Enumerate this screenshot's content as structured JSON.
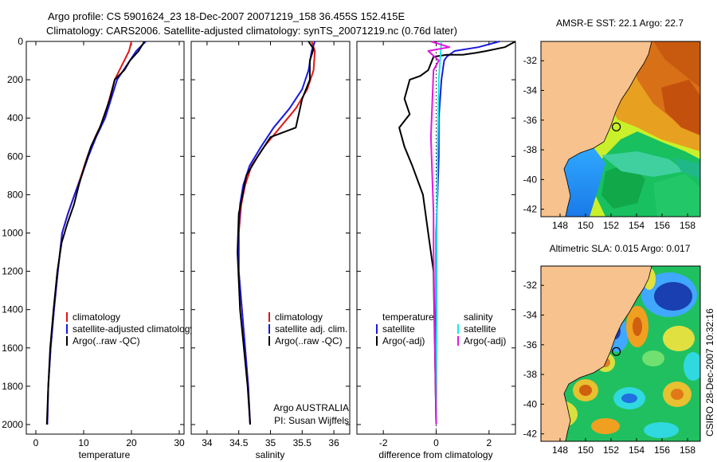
{
  "header": {
    "line1": "Argo profile: CS 5901624_23 18-Dec-2007 20071219_158 36.455S 152.415E",
    "line2": "Climatology: CARS2006. Satellite-adjusted climatology: synTS_20071219.nc (0.76d later)"
  },
  "side_label": "CSIRO 28-Dec-2007 10:32:16",
  "colors": {
    "climatology": "#e01818",
    "satellite": "#1a1adc",
    "argo": "#000000",
    "satellite_salinity": "#18e8e8",
    "argo_salinity": "#e018e0",
    "land": "#f7c28e"
  },
  "chart_data": [
    {
      "type": "line",
      "xlabel": "temperature",
      "ylabel": "",
      "xlim": [
        -2,
        31
      ],
      "ylim": [
        2050,
        0
      ],
      "xticks": [
        0,
        10,
        20,
        30
      ],
      "yticks": [
        0,
        200,
        400,
        600,
        800,
        1000,
        1200,
        1400,
        1600,
        1800,
        2000
      ],
      "legend": [
        "climatology",
        "satellite-adjusted climatology",
        "Argo(..raw -QC)"
      ],
      "series": [
        {
          "name": "climatology",
          "x": [
            20,
            19.5,
            16.5,
            14.3,
            12.4,
            10.8,
            9.5,
            8.1,
            6.7,
            5.5,
            4.6,
            3.8,
            3.1,
            2.6,
            2.4
          ],
          "y": [
            0,
            50,
            200,
            400,
            500,
            600,
            700,
            800,
            900,
            1000,
            1200,
            1400,
            1600,
            1800,
            2000
          ]
        },
        {
          "name": "satellite-adjusted climatology",
          "x": [
            23,
            21,
            17,
            14.5,
            12.6,
            11,
            9.6,
            8.1,
            6.7,
            5.5,
            4.6,
            3.8,
            3.1,
            2.6,
            2.4
          ],
          "y": [
            0,
            50,
            200,
            400,
            500,
            600,
            700,
            800,
            900,
            1000,
            1200,
            1400,
            1600,
            1800,
            2000
          ]
        },
        {
          "name": "Argo(..raw -QC)",
          "x": [
            22.7,
            21.5,
            19.7,
            18.5,
            16.5,
            15.5,
            13.4,
            11.5,
            10.2,
            9,
            8,
            6.6,
            5.4,
            4.5,
            3.7,
            3,
            2.6,
            2.3
          ],
          "y": [
            0,
            50,
            100,
            150,
            200,
            300,
            450,
            550,
            650,
            750,
            850,
            950,
            1050,
            1200,
            1400,
            1600,
            1800,
            2000
          ]
        }
      ]
    },
    {
      "type": "line",
      "xlabel": "salinity",
      "ylabel": "",
      "xlim": [
        33.75,
        36.25
      ],
      "ylim": [
        2050,
        0
      ],
      "xticks": [
        34,
        34.5,
        35,
        35.5,
        36
      ],
      "legend": [
        "climatology",
        "satellite adj. clim.",
        "Argo(..raw -QC)"
      ],
      "annotation": [
        "Argo AUSTRALIA",
        "PI: Susan Wijffels"
      ],
      "series": [
        {
          "name": "climatology",
          "x": [
            35.65,
            35.7,
            35.68,
            35.58,
            35.4,
            35.15,
            34.9,
            34.7,
            34.6,
            34.54,
            34.5,
            34.5,
            34.55,
            34.6,
            34.65,
            34.68
          ],
          "y": [
            0,
            50,
            150,
            250,
            350,
            450,
            550,
            650,
            750,
            850,
            1000,
            1200,
            1400,
            1600,
            1800,
            2000
          ]
        },
        {
          "name": "satellite adj. clim.",
          "x": [
            35.7,
            35.65,
            35.6,
            35.5,
            35.3,
            35.05,
            34.85,
            34.67,
            34.57,
            34.52,
            34.5,
            34.5,
            34.55,
            34.6,
            34.65,
            34.68
          ],
          "y": [
            0,
            50,
            150,
            250,
            350,
            450,
            550,
            650,
            750,
            850,
            1000,
            1200,
            1400,
            1600,
            1800,
            2000
          ]
        },
        {
          "name": "Argo(..raw -QC)",
          "x": [
            35.6,
            35.68,
            35.62,
            35.62,
            35.5,
            35.4,
            35.0,
            34.8,
            34.62,
            34.56,
            34.5,
            34.48,
            34.52,
            34.58,
            34.64,
            34.68
          ],
          "y": [
            0,
            40,
            100,
            200,
            300,
            450,
            500,
            600,
            700,
            800,
            900,
            1100,
            1400,
            1600,
            1800,
            2000
          ]
        }
      ]
    },
    {
      "type": "line",
      "xlabel": "difference from climatology",
      "ylabel": "",
      "xlim": [
        -3,
        3
      ],
      "ylim": [
        2050,
        0
      ],
      "xticks": [
        -2,
        0,
        2
      ],
      "legend_left": [
        "temperature",
        "satellite",
        "Argo(-adj)"
      ],
      "legend_right": [
        "salinity",
        "satellite",
        "Argo(-adj)"
      ],
      "series": [
        {
          "name": "temperature satellite",
          "x": [
            2.4,
            1.6,
            0.7,
            0.4,
            0.3,
            0.2,
            0.1,
            0.1,
            0.05,
            0,
            0
          ],
          "y": [
            0,
            30,
            50,
            80,
            100,
            200,
            400,
            600,
            800,
            1000,
            2000
          ]
        },
        {
          "name": "temperature Argo(-adj)",
          "x": [
            3,
            2.6,
            1.9,
            1.5,
            1.0,
            0.4,
            -0.1,
            -0.3,
            -0.6,
            -1.0,
            -1.2,
            -1.0,
            -1.4,
            -1.2,
            -0.9,
            -0.5,
            -0.3,
            -0.1,
            0
          ],
          "y": [
            0,
            30,
            50,
            60,
            70,
            70,
            80,
            150,
            180,
            200,
            300,
            380,
            450,
            550,
            650,
            800,
            1000,
            1200,
            2000
          ]
        },
        {
          "name": "salinity satellite",
          "x": [
            0.2,
            0.1,
            0.05,
            0.02,
            0.02,
            0
          ],
          "y": [
            0,
            200,
            600,
            1000,
            1400,
            2000
          ]
        },
        {
          "name": "salinity Argo(-adj)",
          "x": [
            -0.2,
            0.5,
            -0.3,
            0.1,
            -0.1,
            -0.2,
            -0.1,
            -0.1,
            0
          ],
          "y": [
            0,
            30,
            50,
            100,
            150,
            500,
            900,
            1100,
            2000
          ]
        }
      ]
    },
    {
      "type": "heatmap",
      "title": "AMSR-E SST: 22.1 Argo: 22.7",
      "xlim": [
        146.5,
        159
      ],
      "ylim": [
        -42.5,
        -30.7
      ],
      "xticks": [
        148,
        150,
        152,
        154,
        156,
        158
      ],
      "yticks": [
        -32,
        -34,
        -36,
        -38,
        -40,
        -42
      ],
      "marker": {
        "lon": 152.415,
        "lat": -36.455
      }
    },
    {
      "type": "heatmap",
      "title": "Altimetric SLA: 0.015 Argo: 0.017",
      "xlim": [
        146.5,
        159
      ],
      "ylim": [
        -42.5,
        -30.7
      ],
      "xticks": [
        148,
        150,
        152,
        154,
        156,
        158
      ],
      "yticks": [
        -32,
        -34,
        -36,
        -38,
        -40,
        -42
      ],
      "marker": {
        "lon": 152.415,
        "lat": -36.455
      }
    }
  ]
}
